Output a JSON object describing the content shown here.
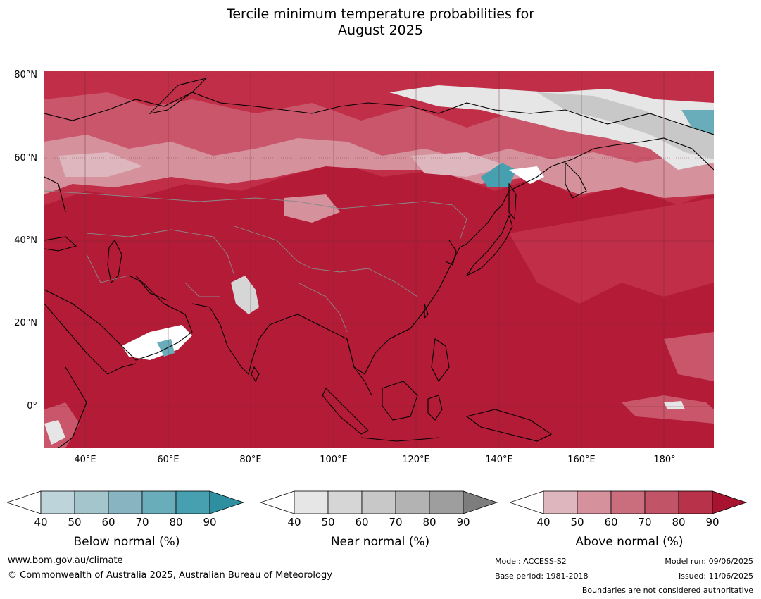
{
  "title": {
    "line1": "Tercile minimum temperature probabilities for",
    "line2": "August 2025"
  },
  "map": {
    "lat_labels": [
      "80°N",
      "60°N",
      "40°N",
      "20°N",
      "0°"
    ],
    "lon_labels": [
      "40°E",
      "60°E",
      "80°E",
      "100°E",
      "120°E",
      "140°E",
      "160°E",
      "180°"
    ],
    "dominant_category": "Above normal",
    "dominant_color": "#b41c38"
  },
  "legends": [
    {
      "caption": "Below normal (%)",
      "ticks": [
        "40",
        "50",
        "60",
        "70",
        "80",
        "90"
      ],
      "colors": [
        "#ffffff",
        "#bdd4db",
        "#a4c5cc",
        "#87b4c0",
        "#6aadba",
        "#46a0b0",
        "#2e8fa1"
      ]
    },
    {
      "caption": "Near normal (%)",
      "ticks": [
        "40",
        "50",
        "60",
        "70",
        "80",
        "90"
      ],
      "colors": [
        "#ffffff",
        "#e6e6e6",
        "#d6d6d6",
        "#c8c8c8",
        "#b3b3b3",
        "#9e9e9e",
        "#7d7d7d"
      ]
    },
    {
      "caption": "Above normal (%)",
      "ticks": [
        "40",
        "50",
        "60",
        "70",
        "80",
        "90"
      ],
      "colors": [
        "#ffffff",
        "#deb6bd",
        "#d5919c",
        "#ca6e7e",
        "#c25467",
        "#b83249",
        "#a8142f"
      ]
    }
  ],
  "footer": {
    "website": "www.bom.gov.au/climate",
    "copyright": "© Commonwealth of Australia 2025, Australian Bureau of Meteorology",
    "model": "Model: ACCESS-S2",
    "base_period": "Base period: 1981-2018",
    "model_run": "Model run: 09/06/2025",
    "issued": "Issued: 11/06/2025",
    "disclaimer": "Boundaries are not considered authoritative"
  }
}
